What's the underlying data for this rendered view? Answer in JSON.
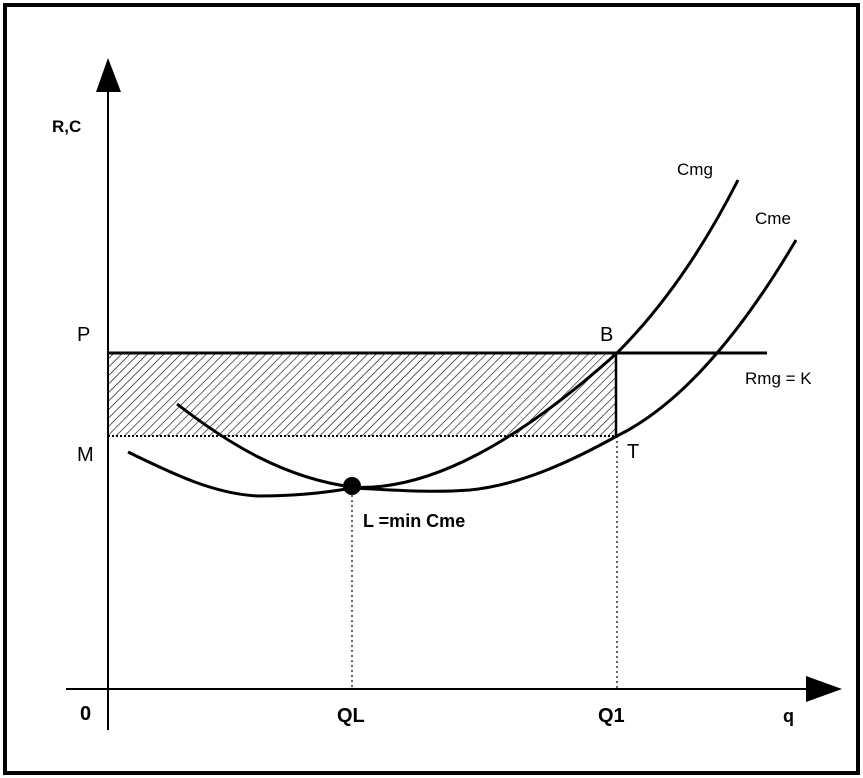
{
  "axes": {
    "y_label": "R,C",
    "x_label": "q",
    "origin_label": "0"
  },
  "levels": {
    "price_label": "P",
    "min_cost_label": "M"
  },
  "points": {
    "b_label": "B",
    "t_label": "T",
    "l_label": "L =min Cme"
  },
  "quantities": {
    "ql_label": "QL",
    "q1_label": "Q1"
  },
  "curves": {
    "marginal_cost": "Cmg",
    "average_cost": "Cme",
    "marginal_revenue": "Rmg = K"
  },
  "colors": {
    "ink": "#000000",
    "background": "#ffffff"
  }
}
